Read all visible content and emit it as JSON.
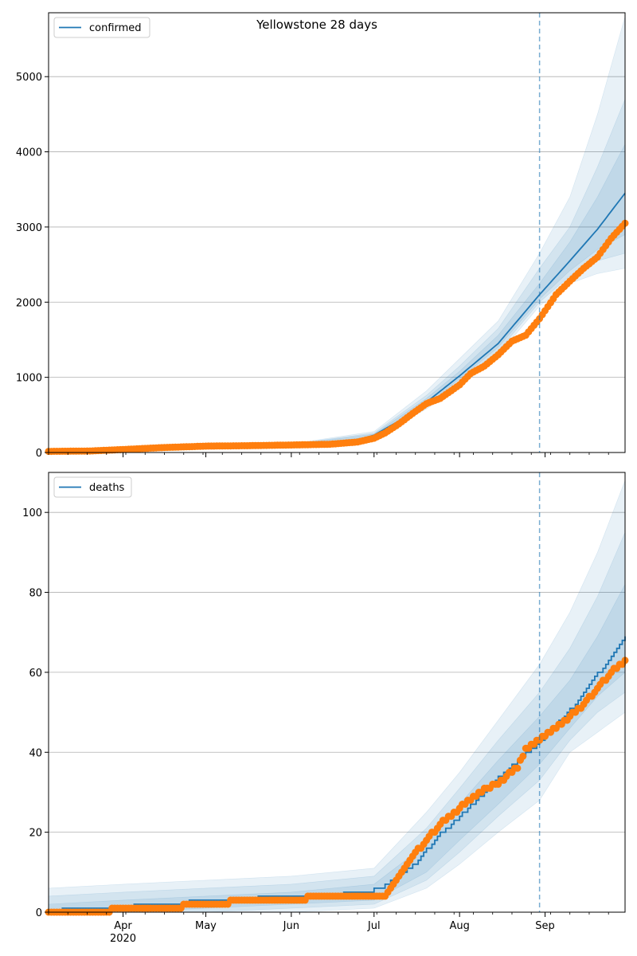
{
  "figure": {
    "title": "Yellowstone 28 days"
  },
  "chart_data": [
    {
      "type": "line",
      "title": "Yellowstone 28 days",
      "xlabel": "",
      "ylabel": "",
      "x_axis": {
        "type": "date",
        "range": [
          "2020-03-05",
          "2020-09-30"
        ],
        "tick_labels": [
          "Apr\n2020",
          "May",
          "Jun",
          "Jul",
          "Aug",
          "Sep"
        ],
        "tick_dates": [
          "2020-04-01",
          "2020-05-01",
          "2020-06-01",
          "2020-07-01",
          "2020-08-01",
          "2020-09-01"
        ]
      },
      "ylim": [
        0,
        5850
      ],
      "yticks": [
        0,
        1000,
        2000,
        3000,
        4000,
        5000
      ],
      "grid": "horizontal",
      "legend": {
        "placement": "top-left",
        "entries": [
          "confirmed"
        ]
      },
      "forecast_start": "2020-08-30",
      "series": [
        {
          "name": "confirmed",
          "kind": "model-line",
          "color": "#1f77b4",
          "x": [
            "2020-03-05",
            "2020-04-01",
            "2020-05-01",
            "2020-06-01",
            "2020-06-20",
            "2020-07-01",
            "2020-07-10",
            "2020-07-20",
            "2020-08-01",
            "2020-08-15",
            "2020-08-30",
            "2020-09-10",
            "2020-09-20",
            "2020-09-30"
          ],
          "y": [
            15,
            40,
            85,
            100,
            120,
            230,
            420,
            670,
            1020,
            1450,
            2100,
            2550,
            2970,
            3450
          ]
        },
        {
          "name": "",
          "kind": "observed",
          "color": "#ff7f0e",
          "x": [
            "2020-03-05",
            "2020-03-20",
            "2020-04-01",
            "2020-04-15",
            "2020-05-01",
            "2020-05-15",
            "2020-06-01",
            "2020-06-15",
            "2020-06-25",
            "2020-07-01",
            "2020-07-05",
            "2020-07-10",
            "2020-07-15",
            "2020-07-20",
            "2020-07-25",
            "2020-08-01",
            "2020-08-05",
            "2020-08-10",
            "2020-08-15",
            "2020-08-20",
            "2020-08-25",
            "2020-08-30",
            "2020-09-05",
            "2020-09-10",
            "2020-09-15",
            "2020-09-20",
            "2020-09-25",
            "2020-09-30"
          ],
          "y": [
            15,
            20,
            40,
            65,
            85,
            90,
            100,
            110,
            140,
            190,
            260,
            380,
            520,
            650,
            720,
            900,
            1050,
            1150,
            1300,
            1480,
            1560,
            1780,
            2100,
            2280,
            2450,
            2600,
            2850,
            3050
          ]
        }
      ],
      "bands": [
        {
          "x": [
            "2020-03-05",
            "2020-06-01",
            "2020-07-01",
            "2020-07-20",
            "2020-08-01",
            "2020-08-15",
            "2020-08-30",
            "2020-09-10",
            "2020-09-20",
            "2020-09-30"
          ],
          "lower": [
            10,
            90,
            190,
            580,
            900,
            1300,
            1950,
            2250,
            2380,
            2450
          ],
          "upper": [
            25,
            115,
            280,
            820,
            1250,
            1750,
            2650,
            3400,
            4500,
            5800
          ]
        },
        {
          "x": [
            "2020-03-05",
            "2020-06-01",
            "2020-07-01",
            "2020-07-20",
            "2020-08-01",
            "2020-08-15",
            "2020-08-30",
            "2020-09-10",
            "2020-09-20",
            "2020-09-30"
          ],
          "lower": [
            12,
            93,
            200,
            610,
            950,
            1350,
            2000,
            2350,
            2550,
            2650
          ],
          "upper": [
            22,
            110,
            260,
            760,
            1150,
            1650,
            2450,
            3000,
            3800,
            4700
          ]
        },
        {
          "x": [
            "2020-03-05",
            "2020-06-01",
            "2020-07-01",
            "2020-07-20",
            "2020-08-01",
            "2020-08-15",
            "2020-08-30",
            "2020-09-10",
            "2020-09-20",
            "2020-09-30"
          ],
          "lower": [
            13,
            96,
            210,
            630,
            980,
            1400,
            2040,
            2420,
            2700,
            2900
          ],
          "upper": [
            19,
            106,
            245,
            720,
            1080,
            1560,
            2250,
            2800,
            3400,
            4100
          ]
        }
      ]
    },
    {
      "type": "line",
      "title": "",
      "xlabel": "",
      "ylabel": "",
      "x_axis": {
        "type": "date",
        "range": [
          "2020-03-05",
          "2020-09-30"
        ],
        "tick_labels": [
          "Apr\n2020",
          "May",
          "Jun",
          "Jul",
          "Aug",
          "Sep"
        ],
        "tick_dates": [
          "2020-04-01",
          "2020-05-01",
          "2020-06-01",
          "2020-07-01",
          "2020-08-01",
          "2020-09-01"
        ]
      },
      "ylim": [
        0,
        110
      ],
      "yticks": [
        0,
        20,
        40,
        60,
        80,
        100
      ],
      "grid": "horizontal",
      "legend": {
        "placement": "top-left",
        "entries": [
          "deaths"
        ]
      },
      "forecast_start": "2020-08-30",
      "series": [
        {
          "name": "deaths",
          "kind": "model-line",
          "color": "#1f77b4",
          "x": [
            "2020-03-05",
            "2020-03-10",
            "2020-04-05",
            "2020-04-25",
            "2020-05-20",
            "2020-06-10",
            "2020-06-20",
            "2020-07-01",
            "2020-07-05",
            "2020-07-15",
            "2020-07-25",
            "2020-08-05",
            "2020-08-15",
            "2020-08-25",
            "2020-08-30",
            "2020-09-10",
            "2020-09-20",
            "2020-09-30"
          ],
          "y": [
            0,
            1,
            2,
            3,
            4,
            4,
            5,
            6,
            7,
            12,
            20,
            27,
            34,
            40,
            43,
            51,
            60,
            69
          ]
        },
        {
          "name": "",
          "kind": "observed",
          "color": "#ff7f0e",
          "x": [
            "2020-03-05",
            "2020-04-20",
            "2020-04-25",
            "2020-05-25",
            "2020-06-20",
            "2020-07-05",
            "2020-07-10",
            "2020-07-15",
            "2020-07-20",
            "2020-07-25",
            "2020-08-01",
            "2020-08-05",
            "2020-08-10",
            "2020-08-15",
            "2020-08-18",
            "2020-08-22",
            "2020-08-25",
            "2020-08-30",
            "2020-09-05",
            "2020-09-10",
            "2020-09-15",
            "2020-09-20",
            "2020-09-25",
            "2020-09-30"
          ],
          "y": [
            0,
            1,
            2,
            3,
            4,
            4,
            9,
            14,
            18,
            22,
            26,
            28,
            31,
            32,
            34,
            36,
            41,
            43,
            46,
            49,
            52,
            56,
            60,
            63
          ]
        }
      ],
      "bands": [
        {
          "x": [
            "2020-03-05",
            "2020-04-01",
            "2020-05-01",
            "2020-06-01",
            "2020-07-01",
            "2020-07-20",
            "2020-08-01",
            "2020-08-15",
            "2020-08-30",
            "2020-09-10",
            "2020-09-20",
            "2020-09-30"
          ],
          "lower": [
            0,
            0,
            0,
            0,
            1,
            6,
            12,
            20,
            28,
            40,
            45,
            50
          ],
          "upper": [
            6,
            7,
            8,
            9,
            11,
            25,
            35,
            48,
            62,
            75,
            90,
            108
          ]
        },
        {
          "x": [
            "2020-03-05",
            "2020-04-01",
            "2020-05-01",
            "2020-06-01",
            "2020-07-01",
            "2020-07-20",
            "2020-08-01",
            "2020-08-15",
            "2020-08-30",
            "2020-09-10",
            "2020-09-20",
            "2020-09-30"
          ],
          "lower": [
            0,
            0,
            0,
            1,
            2,
            8,
            15,
            24,
            33,
            43,
            50,
            55
          ],
          "upper": [
            4,
            5,
            6,
            7,
            9,
            21,
            31,
            43,
            55,
            66,
            79,
            95
          ]
        },
        {
          "x": [
            "2020-03-05",
            "2020-04-01",
            "2020-05-01",
            "2020-06-01",
            "2020-07-01",
            "2020-07-20",
            "2020-08-01",
            "2020-08-15",
            "2020-08-30",
            "2020-09-10",
            "2020-09-20",
            "2020-09-30"
          ],
          "lower": [
            0,
            0,
            1,
            2,
            3,
            10,
            18,
            27,
            37,
            46,
            54,
            60
          ],
          "upper": [
            2,
            3,
            4,
            5,
            7,
            17,
            27,
            38,
            49,
            58,
            69,
            82
          ]
        }
      ]
    }
  ]
}
